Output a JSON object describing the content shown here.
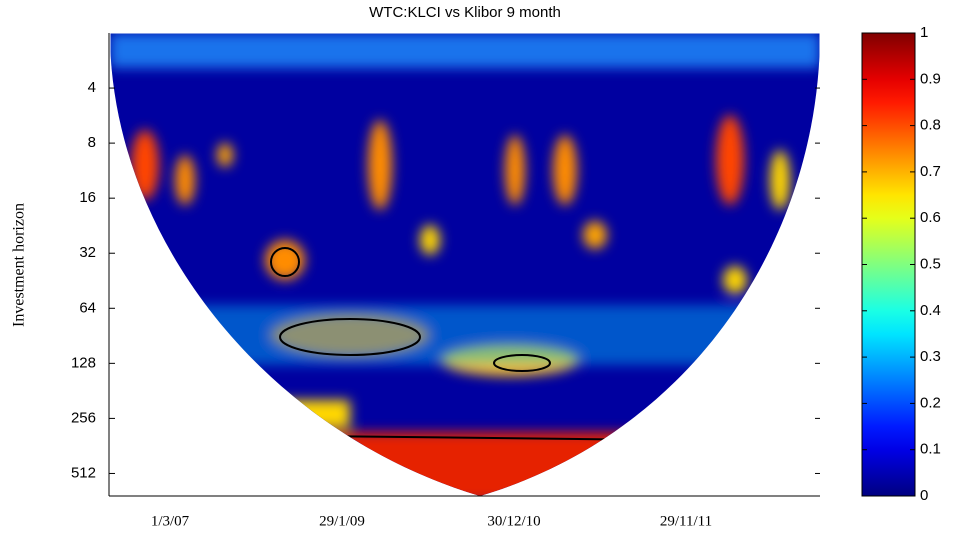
{
  "chart_data": {
    "type": "heatmap",
    "title": "WTC:KLCI vs Klibor 9 month",
    "ylabel": "Investment horizon",
    "x_tick_labels": [
      "1/3/07",
      "29/1/09",
      "30/12/10",
      "29/11/11"
    ],
    "yscale": "log2",
    "y_inverted": true,
    "ylim": [
      2,
      680
    ],
    "yticks": [
      4,
      8,
      16,
      32,
      64,
      128,
      256,
      512
    ],
    "colormap": "jet",
    "clim": [
      0,
      1
    ],
    "cticks": [
      0,
      0.1,
      0.2,
      0.3,
      0.4,
      0.5,
      0.6,
      0.7,
      0.8,
      0.9,
      1
    ]
  }
}
